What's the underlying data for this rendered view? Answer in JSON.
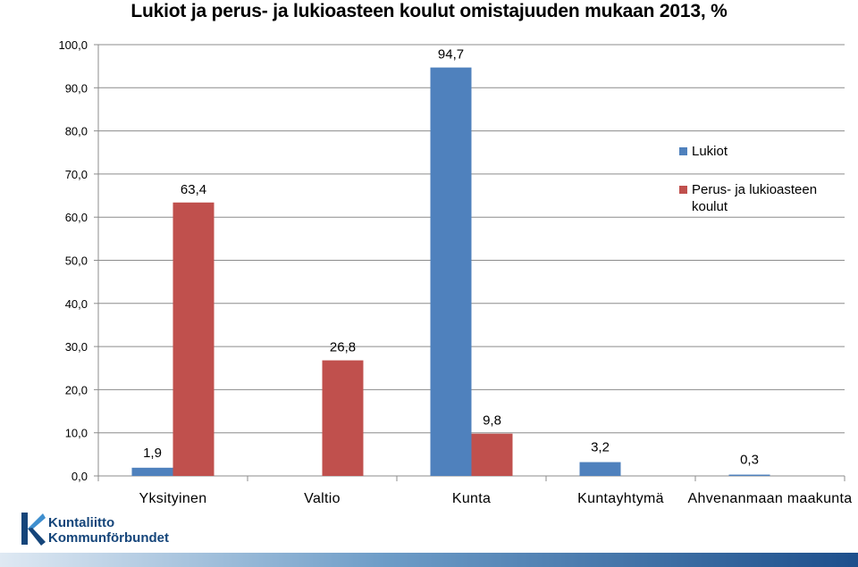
{
  "chart_data": {
    "type": "bar",
    "title": "Lukiot ja perus- ja lukioasteen koulut omistajuuden mukaan 2013, %",
    "categories": [
      "Yksityinen",
      "Valtio",
      "Kunta",
      "Kuntayhtymä",
      "Ahvenanmaan maakunta"
    ],
    "series": [
      {
        "name": "Lukiot",
        "color": "#4f81bd",
        "values": [
          1.9,
          null,
          94.7,
          3.2,
          0.3
        ],
        "labels": [
          "1,9",
          "",
          "94,7",
          "3,2",
          "0,3"
        ]
      },
      {
        "name": "Perus- ja lukioasteen koulut",
        "color": "#c0504d",
        "values": [
          63.4,
          26.8,
          9.8,
          null,
          null
        ],
        "labels": [
          "63,4",
          "26,8",
          "9,8",
          "",
          ""
        ]
      }
    ],
    "ylim": [
      0,
      100
    ],
    "yticks": [
      "0,0",
      "10,0",
      "20,0",
      "30,0",
      "40,0",
      "50,0",
      "60,0",
      "70,0",
      "80,0",
      "90,0",
      "100,0"
    ],
    "grid": true,
    "legend": "right"
  },
  "logo": {
    "line1": "Kuntaliitto",
    "line2": "Kommunförbundet",
    "name": "kuntaliitto-logo-icon"
  }
}
